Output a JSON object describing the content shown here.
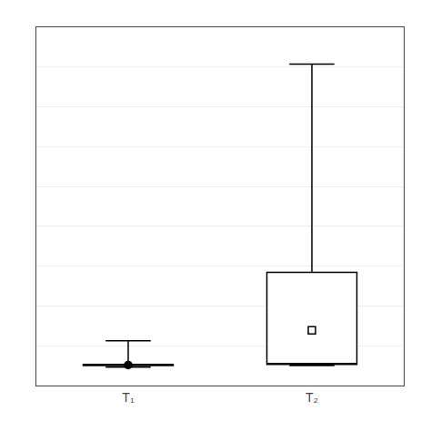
{
  "chart_data": {
    "type": "box",
    "categories": [
      "T₁",
      "T₂"
    ],
    "lowerfence": [
      0.05,
      0.08
    ],
    "q1": [
      0.08,
      0.1
    ],
    "median": [
      0.09,
      0.12
    ],
    "q3": [
      0.1,
      1.85
    ],
    "upperfence": [
      0.55,
      5.8
    ],
    "mean": [
      0.09,
      0.75
    ],
    "color": "#000000",
    "ylim": [
      -0.3,
      6.5
    ],
    "yticks": [
      -0.3,
      0.45555555555555555,
      1.211111111111111,
      1.9666666666666668,
      2.7222222222222223,
      3.4777777777777774,
      4.233333333333333,
      4.988888888888889,
      5.744444444444444,
      6.5
    ],
    "grid": true,
    "tick_labels": "x"
  }
}
